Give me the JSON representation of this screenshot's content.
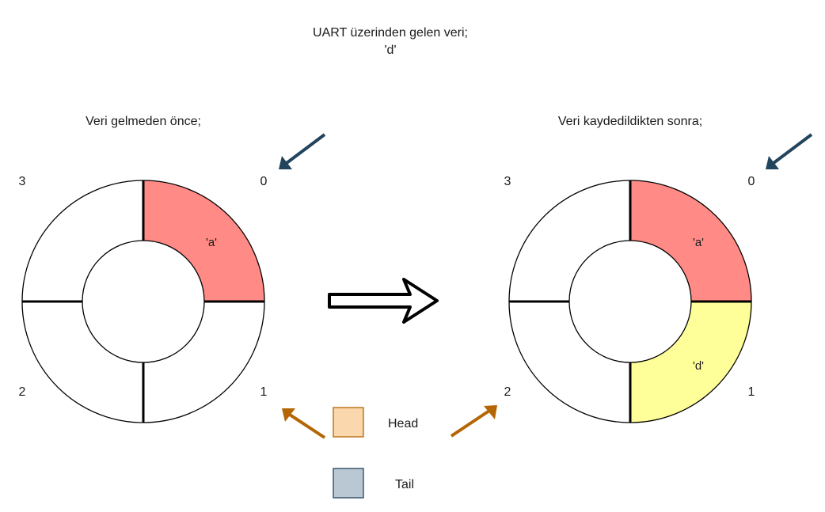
{
  "title": {
    "line1": "UART üzerinden gelen veri;",
    "line2": "'d'"
  },
  "left_buffer": {
    "caption": "Veri gelmeden önce;",
    "indices": [
      "0",
      "1",
      "2",
      "3"
    ],
    "cells": [
      {
        "index": "0",
        "value": "'a'",
        "fill": "#ff8a86"
      },
      {
        "index": "1",
        "value": "",
        "fill": "#ffffff"
      },
      {
        "index": "2",
        "value": "",
        "fill": "#ffffff"
      },
      {
        "index": "3",
        "value": "",
        "fill": "#ffffff"
      }
    ],
    "head_index": "1",
    "tail_index": "0"
  },
  "right_buffer": {
    "caption": "Veri kaydedildikten sonra;",
    "indices": [
      "0",
      "1",
      "2",
      "3"
    ],
    "cells": [
      {
        "index": "0",
        "value": "'a'",
        "fill": "#ff8a86"
      },
      {
        "index": "1",
        "value": "'d'",
        "fill": "#ffff99"
      },
      {
        "index": "2",
        "value": "",
        "fill": "#ffffff"
      },
      {
        "index": "3",
        "value": "",
        "fill": "#ffffff"
      }
    ],
    "head_index": "2",
    "tail_index": "0"
  },
  "legend": {
    "head_label": "Head",
    "head_color": "#fad7ac",
    "head_border": "#b46504",
    "tail_label": "Tail",
    "tail_color": "#bac8d3",
    "tail_border": "#23445d"
  },
  "colors": {
    "head_arrow": "#b46504",
    "tail_arrow": "#23445d"
  }
}
